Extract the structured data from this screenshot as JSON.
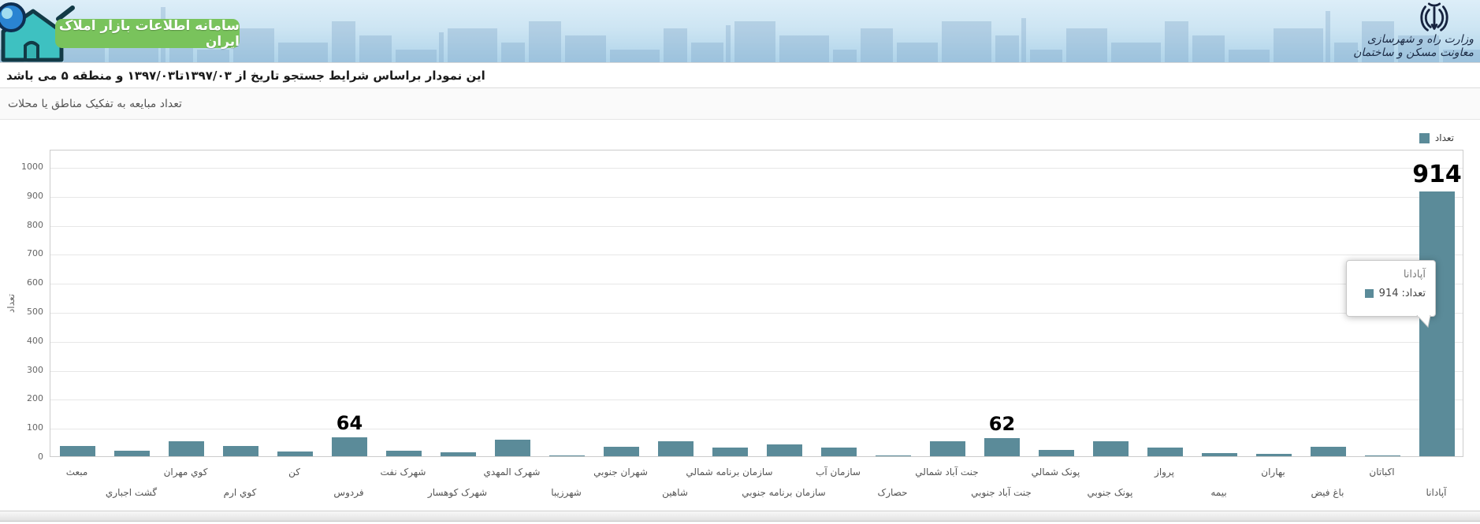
{
  "header": {
    "badge_title": "سامانه اطلاعات بازار املاک ایران",
    "ministry_line1": "وزارت راه و شهرسازی",
    "ministry_line2": "معاونت مسکن و ساختمان"
  },
  "info": {
    "criteria_text": "این نمودار براساس شرایط جستجو تاریخ از ۱۳۹۷/۰۳تا۱۳۹۷/۰۳ و منطقه ۵ می باشد",
    "subtitle": "تعداد مبایعه به تفکیک مناطق یا محلات"
  },
  "legend": {
    "label": "تعداد"
  },
  "tooltip": {
    "title": "آپادانا",
    "series_label": "تعداد:",
    "value": "914"
  },
  "colors": {
    "bar": "#5b8b99",
    "badge_green": "#79c35c",
    "header_ink": "#1c2b45"
  },
  "chart_data": {
    "type": "bar",
    "title": "تعداد مبایعه به تفکیک مناطق یا محلات",
    "xlabel": "",
    "ylabel": "تعداد",
    "legend_entries": [
      "تعداد"
    ],
    "legend_position": "top-right",
    "grid": true,
    "ylim": [
      0,
      1000
    ],
    "ytick_interval": 100,
    "categories": [
      "مبعث",
      "گشت اجباري",
      "کوي مهران",
      "کوي ارم",
      "کن",
      "فردوس",
      "شهرک نفت",
      "شهرک کوهسار",
      "شهرک المهدي",
      "شهرزیبا",
      "شهران جنوبي",
      "شاهین",
      "سازمان برنامه شمالي",
      "سازمان برنامه جنوبي",
      "سازمان آب",
      "حصارک",
      "جنت آباد شمالي",
      "جنت آباد جنوبي",
      "پونک شمالي",
      "پونک جنوبي",
      "پرواز",
      "بیمه",
      "بهاران",
      "باغ فیض",
      "اکباتان",
      "آپادانا"
    ],
    "values": [
      35,
      18,
      52,
      35,
      15,
      64,
      20,
      13,
      57,
      4,
      33,
      52,
      29,
      42,
      30,
      3,
      52,
      62,
      23,
      52,
      30,
      10,
      7,
      33,
      3,
      914
    ],
    "data_labels": [
      null,
      null,
      null,
      null,
      null,
      "64",
      null,
      null,
      null,
      null,
      null,
      null,
      null,
      null,
      null,
      null,
      null,
      "62",
      null,
      null,
      null,
      null,
      null,
      null,
      null,
      "914"
    ]
  }
}
